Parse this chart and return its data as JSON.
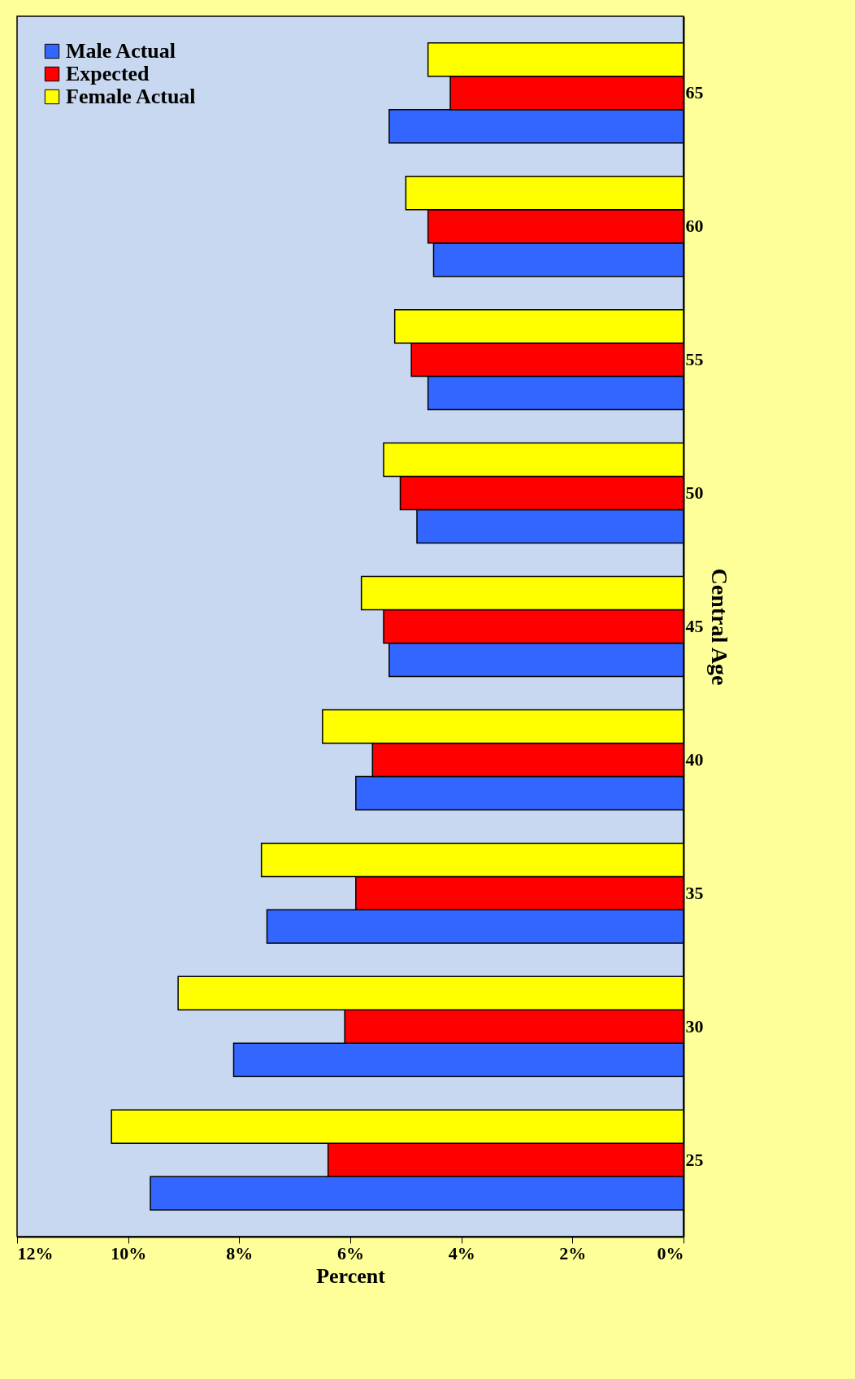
{
  "chart_data": {
    "type": "bar",
    "orientation": "horizontal",
    "xlabel": "Percent",
    "ylabel": "Central Age",
    "categories": [
      "65",
      "60",
      "55",
      "50",
      "45",
      "40",
      "35",
      "30",
      "25"
    ],
    "series": [
      {
        "name": "Male Actual",
        "color": "#3366ff",
        "values": [
          5.3,
          4.5,
          4.6,
          4.8,
          5.3,
          5.9,
          7.5,
          8.1,
          9.6
        ]
      },
      {
        "name": "Expected",
        "color": "#ff0000",
        "values": [
          4.2,
          4.6,
          4.9,
          5.1,
          5.4,
          5.6,
          5.9,
          6.1,
          6.4
        ]
      },
      {
        "name": "Female Actual",
        "color": "#ffff00",
        "values": [
          4.6,
          5.0,
          5.2,
          5.4,
          5.8,
          6.5,
          7.6,
          9.1,
          10.3
        ]
      }
    ],
    "xlim": [
      12,
      0
    ],
    "xticks": [
      {
        "value": 12,
        "label": "12%"
      },
      {
        "value": 10,
        "label": "10%"
      },
      {
        "value": 8,
        "label": "8%"
      },
      {
        "value": 6,
        "label": "6%"
      },
      {
        "value": 4,
        "label": "4%"
      },
      {
        "value": 2,
        "label": "2%"
      },
      {
        "value": 0,
        "label": "0%"
      }
    ],
    "legend": "top left",
    "grid": false
  }
}
